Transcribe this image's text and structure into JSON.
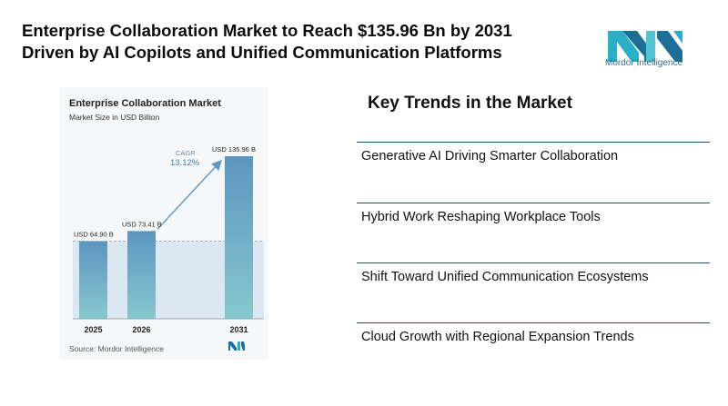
{
  "headline": {
    "line1": "Enterprise Collaboration Market to Reach $135.96 Bn by 2031",
    "line2": "Driven by AI Copilots and Unified Communication Platforms"
  },
  "logo": {
    "text": "Mordor Intelligence",
    "icon": "mordor-intelligence-logo"
  },
  "chart": {
    "title": "Enterprise Collaboration Market",
    "subtitle": "Market Size in USD Billion",
    "source": "Source: Mordor Intelligence"
  },
  "chart_data": {
    "type": "bar",
    "title": "Enterprise Collaboration Market",
    "ylabel": "Market Size in USD Billion",
    "categories": [
      "2025",
      "2026",
      "2031"
    ],
    "values": [
      64.9,
      73.41,
      135.96
    ],
    "data_labels": [
      "USD 64.90 B",
      "USD 73.41 B",
      "USD 135.96 B"
    ],
    "annotation": {
      "label": "CAGR",
      "value": "13.12%"
    },
    "ylim": [
      0,
      140
    ],
    "grid": false,
    "colors": {
      "bar_top": "#5c96c0",
      "bar_bottom": "#86c8cf",
      "band": "#dbe7f1",
      "arrow": "#5b9ac8"
    }
  },
  "trends": {
    "title": "Key Trends in the Market",
    "items": [
      "Generative AI Driving Smarter Collaboration",
      "Hybrid Work Reshaping Workplace Tools",
      "Shift Toward Unified Communication Ecosystems",
      "Cloud Growth with Regional Expansion Trends"
    ]
  }
}
